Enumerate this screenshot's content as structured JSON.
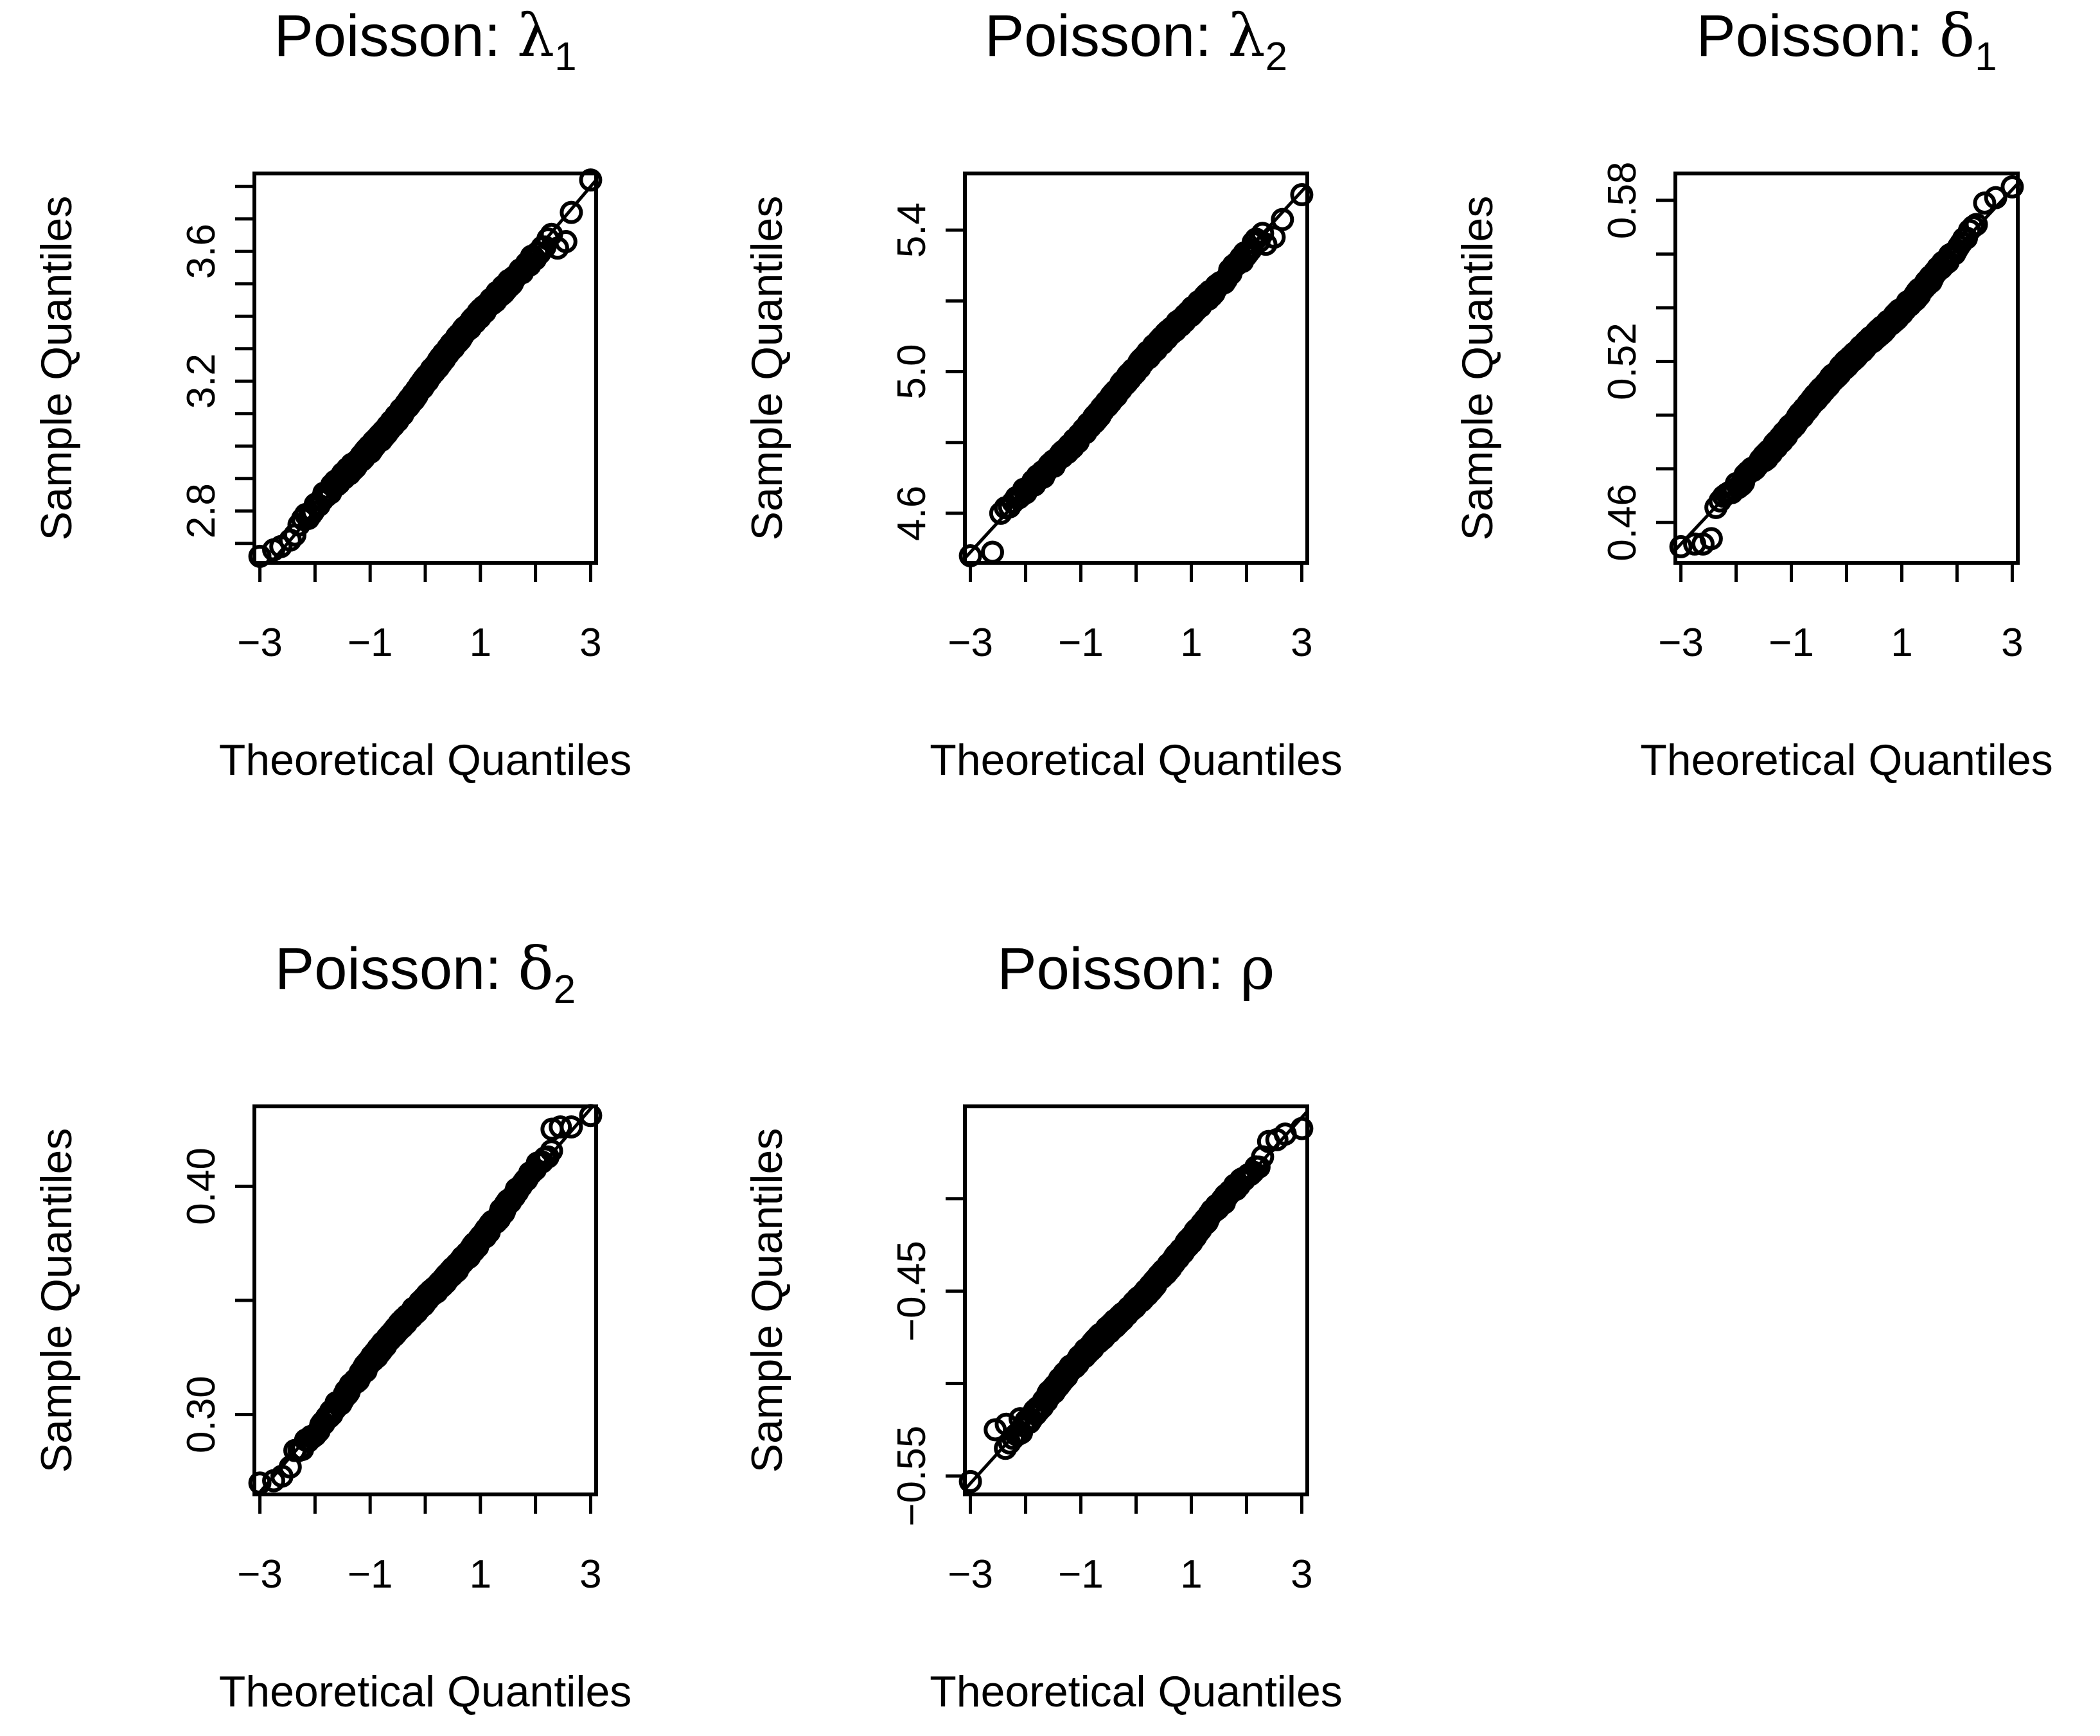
{
  "chart_data": [
    {
      "type": "scatter",
      "kind": "qq-normal",
      "title": "Poisson: ",
      "title_symbol": "λ",
      "title_sub": "1",
      "xlabel": "Theoretical Quantiles",
      "ylabel": "Sample Quantiles",
      "xlim": [
        -3.1,
        3.1
      ],
      "ylim": [
        2.64,
        3.84
      ],
      "xticks": [
        -3,
        -2,
        -1,
        0,
        1,
        2,
        3
      ],
      "xtick_labels": [
        "−3",
        "",
        "−1",
        "",
        "1",
        "",
        "3"
      ],
      "yticks": [
        2.7,
        2.8,
        2.9,
        3.0,
        3.1,
        3.2,
        3.3,
        3.4,
        3.5,
        3.6,
        3.7,
        3.8
      ],
      "ytick_labels": [
        "",
        "2.8",
        "",
        "",
        "",
        "3.2",
        "",
        "",
        "",
        "3.6",
        "",
        ""
      ],
      "ref_line": {
        "intercept": 3.2,
        "slope": 0.2
      },
      "n": 500,
      "sample_mean": 3.2,
      "sample_sd": 0.2,
      "extreme_points": [
        [
          -3.0,
          2.66
        ],
        [
          -2.75,
          2.68
        ],
        [
          -2.62,
          2.69
        ],
        [
          -2.45,
          2.71
        ],
        [
          2.4,
          3.61
        ],
        [
          2.55,
          3.63
        ],
        [
          2.65,
          3.72
        ],
        [
          3.0,
          3.82
        ]
      ]
    },
    {
      "type": "scatter",
      "kind": "qq-normal",
      "title": "Poisson: ",
      "title_symbol": "λ",
      "title_sub": "2",
      "xlabel": "Theoretical Quantiles",
      "ylabel": "Sample Quantiles",
      "xlim": [
        -3.1,
        3.1
      ],
      "ylim": [
        4.46,
        5.56
      ],
      "xticks": [
        -3,
        -2,
        -1,
        0,
        1,
        2,
        3
      ],
      "xtick_labels": [
        "−3",
        "",
        "−1",
        "",
        "1",
        "",
        "3"
      ],
      "yticks": [
        4.6,
        4.8,
        5.0,
        5.2,
        5.4
      ],
      "ytick_labels": [
        "4.6",
        "",
        "5.0",
        "",
        "5.4"
      ],
      "ref_line": {
        "intercept": 5.0,
        "slope": 0.17
      },
      "n": 500,
      "sample_mean": 5.0,
      "sample_sd": 0.17,
      "extreme_points": [
        [
          -3.0,
          4.48
        ],
        [
          -2.6,
          4.49
        ],
        [
          -2.45,
          4.6
        ],
        [
          2.35,
          5.36
        ],
        [
          2.5,
          5.38
        ],
        [
          2.65,
          5.43
        ],
        [
          3.0,
          5.5
        ]
      ]
    },
    {
      "type": "scatter",
      "kind": "qq-normal",
      "title": "Poisson: ",
      "title_symbol": "δ",
      "title_sub": "1",
      "xlabel": "Theoretical Quantiles",
      "ylabel": "Sample Quantiles",
      "xlim": [
        -3.1,
        3.1
      ],
      "ylim": [
        0.445,
        0.59
      ],
      "xticks": [
        -3,
        -2,
        -1,
        0,
        1,
        2,
        3
      ],
      "xtick_labels": [
        "−3",
        "",
        "−1",
        "",
        "1",
        "",
        "3"
      ],
      "yticks": [
        0.46,
        0.48,
        0.5,
        0.52,
        0.54,
        0.56,
        0.58
      ],
      "ytick_labels": [
        "0.46",
        "",
        "",
        "0.52",
        "",
        "",
        "0.58"
      ],
      "ref_line": {
        "intercept": 0.518,
        "slope": 0.022
      },
      "n": 500,
      "sample_mean": 0.518,
      "sample_sd": 0.022,
      "extreme_points": [
        [
          -3.0,
          0.451
        ],
        [
          -2.75,
          0.452
        ],
        [
          -2.6,
          0.452
        ],
        [
          -2.45,
          0.454
        ],
        [
          2.35,
          0.571
        ],
        [
          2.5,
          0.579
        ],
        [
          2.7,
          0.581
        ],
        [
          3.0,
          0.585
        ]
      ]
    },
    {
      "type": "scatter",
      "kind": "qq-normal",
      "title": "Poisson: ",
      "title_symbol": "δ",
      "title_sub": "2",
      "xlabel": "Theoretical Quantiles",
      "ylabel": "Sample Quantiles",
      "xlim": [
        -3.1,
        3.1
      ],
      "ylim": [
        0.265,
        0.435
      ],
      "xticks": [
        -3,
        -2,
        -1,
        0,
        1,
        2,
        3
      ],
      "xtick_labels": [
        "−3",
        "",
        "−1",
        "",
        "1",
        "",
        "3"
      ],
      "yticks": [
        0.3,
        0.35,
        0.4
      ],
      "ytick_labels": [
        "0.30",
        "",
        "0.40"
      ],
      "ref_line": {
        "intercept": 0.35,
        "slope": 0.028
      },
      "n": 500,
      "sample_mean": 0.35,
      "sample_sd": 0.028,
      "extreme_points": [
        [
          -3.0,
          0.27
        ],
        [
          -2.75,
          0.271
        ],
        [
          -2.6,
          0.273
        ],
        [
          -2.45,
          0.277
        ],
        [
          2.3,
          0.425
        ],
        [
          2.45,
          0.426
        ],
        [
          2.65,
          0.426
        ],
        [
          3.0,
          0.431
        ]
      ]
    },
    {
      "type": "scatter",
      "kind": "qq-normal",
      "title": "Poisson: ",
      "title_symbol": "ρ",
      "title_sub": "",
      "xlabel": "Theoretical Quantiles",
      "ylabel": "Sample Quantiles",
      "xlim": [
        -3.1,
        3.1
      ],
      "ylim": [
        -0.56,
        -0.35
      ],
      "xticks": [
        -3,
        -2,
        -1,
        0,
        1,
        2,
        3
      ],
      "xtick_labels": [
        "−3",
        "",
        "−1",
        "",
        "1",
        "",
        "3"
      ],
      "yticks": [
        -0.55,
        -0.5,
        -0.45,
        -0.4
      ],
      "ytick_labels": [
        "−0.55",
        "",
        "−0.45",
        ""
      ],
      "ref_line": {
        "intercept": -0.455,
        "slope": 0.033
      },
      "n": 500,
      "sample_mean": -0.455,
      "sample_sd": 0.033,
      "extreme_points": [
        [
          -3.0,
          -0.553
        ],
        [
          -2.55,
          -0.525
        ],
        [
          -2.35,
          -0.522
        ],
        [
          -2.1,
          -0.519
        ],
        [
          2.4,
          -0.369
        ],
        [
          2.55,
          -0.368
        ],
        [
          2.7,
          -0.365
        ],
        [
          3.0,
          -0.362
        ]
      ]
    }
  ]
}
